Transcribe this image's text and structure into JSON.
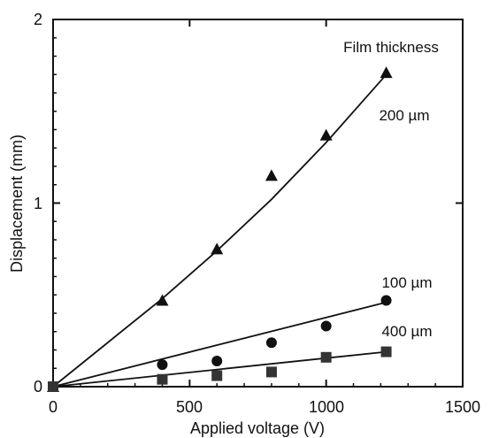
{
  "chart_data": {
    "type": "scatter",
    "title": "",
    "xlabel": "Applied voltage (V)",
    "ylabel": "Displacement (mm)",
    "xlim": [
      0,
      1500
    ],
    "ylim": [
      0,
      2
    ],
    "x_ticks": [
      0,
      500,
      1000,
      1500
    ],
    "y_ticks": [
      0,
      1,
      2
    ],
    "x_tick_labels": [
      "0",
      "500",
      "1000",
      "1500"
    ],
    "y_tick_labels": [
      "0",
      "1",
      "2"
    ],
    "grid": false,
    "legend_title": "Film thickness",
    "series": [
      {
        "name": "200 µm",
        "marker": "triangle",
        "x": [
          0,
          400,
          600,
          800,
          1000,
          1220
        ],
        "y": [
          0,
          0.47,
          0.75,
          1.15,
          1.37,
          1.71
        ],
        "fit_line": [
          [
            0,
            0
          ],
          [
            400,
            0.48
          ],
          [
            600,
            0.74
          ],
          [
            800,
            1.02
          ],
          [
            1000,
            1.33
          ],
          [
            1220,
            1.7
          ]
        ]
      },
      {
        "name": "100 µm",
        "marker": "circle",
        "x": [
          0,
          400,
          600,
          800,
          1000,
          1220
        ],
        "y": [
          0,
          0.12,
          0.14,
          0.24,
          0.33,
          0.47
        ],
        "fit_line": [
          [
            0,
            0
          ],
          [
            1220,
            0.46
          ]
        ]
      },
      {
        "name": "400 µm",
        "marker": "square",
        "x": [
          0,
          400,
          600,
          800,
          1000,
          1220
        ],
        "y": [
          0,
          0.04,
          0.06,
          0.08,
          0.16,
          0.19
        ],
        "fit_line": [
          [
            0,
            0
          ],
          [
            1220,
            0.19
          ]
        ]
      }
    ]
  }
}
